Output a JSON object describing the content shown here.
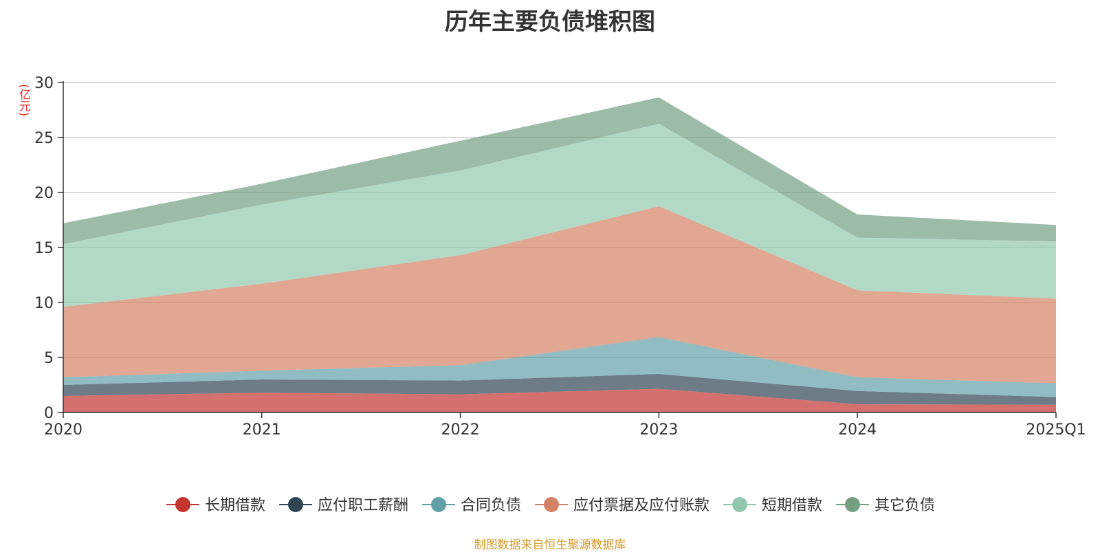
{
  "chart_data": {
    "type": "area",
    "stacked": true,
    "title": "历年主要负债堆积图",
    "unit_label": "(亿元)",
    "source_note": "制图数据来自恒生聚源数据库",
    "categories": [
      "2020",
      "2021",
      "2022",
      "2023",
      "2024",
      "2025Q1"
    ],
    "ylim": [
      0,
      30
    ],
    "yticks": [
      0,
      5,
      10,
      15,
      20,
      25,
      30
    ],
    "grid": true,
    "legend_position": "bottom",
    "series": [
      {
        "name": "长期借款",
        "color": "#c23531",
        "values": [
          1.5,
          1.8,
          1.65,
          2.15,
          0.75,
          0.7
        ]
      },
      {
        "name": "应付职工薪酬",
        "color": "#2f4554",
        "values": [
          1.0,
          1.2,
          1.25,
          1.35,
          1.2,
          0.7
        ]
      },
      {
        "name": "合同负债",
        "color": "#61a0a8",
        "values": [
          0.7,
          0.8,
          1.4,
          3.35,
          1.25,
          1.25
        ]
      },
      {
        "name": "应付票据及应付账款",
        "color": "#d48265",
        "values": [
          6.4,
          7.9,
          10.0,
          11.9,
          7.9,
          7.7
        ]
      },
      {
        "name": "短期借款",
        "color": "#91c7ae",
        "values": [
          5.7,
          7.2,
          7.7,
          7.5,
          4.8,
          5.2
        ]
      },
      {
        "name": "其它负债",
        "color": "#749f83",
        "values": [
          1.9,
          1.9,
          2.7,
          2.4,
          2.1,
          1.5
        ]
      }
    ]
  }
}
